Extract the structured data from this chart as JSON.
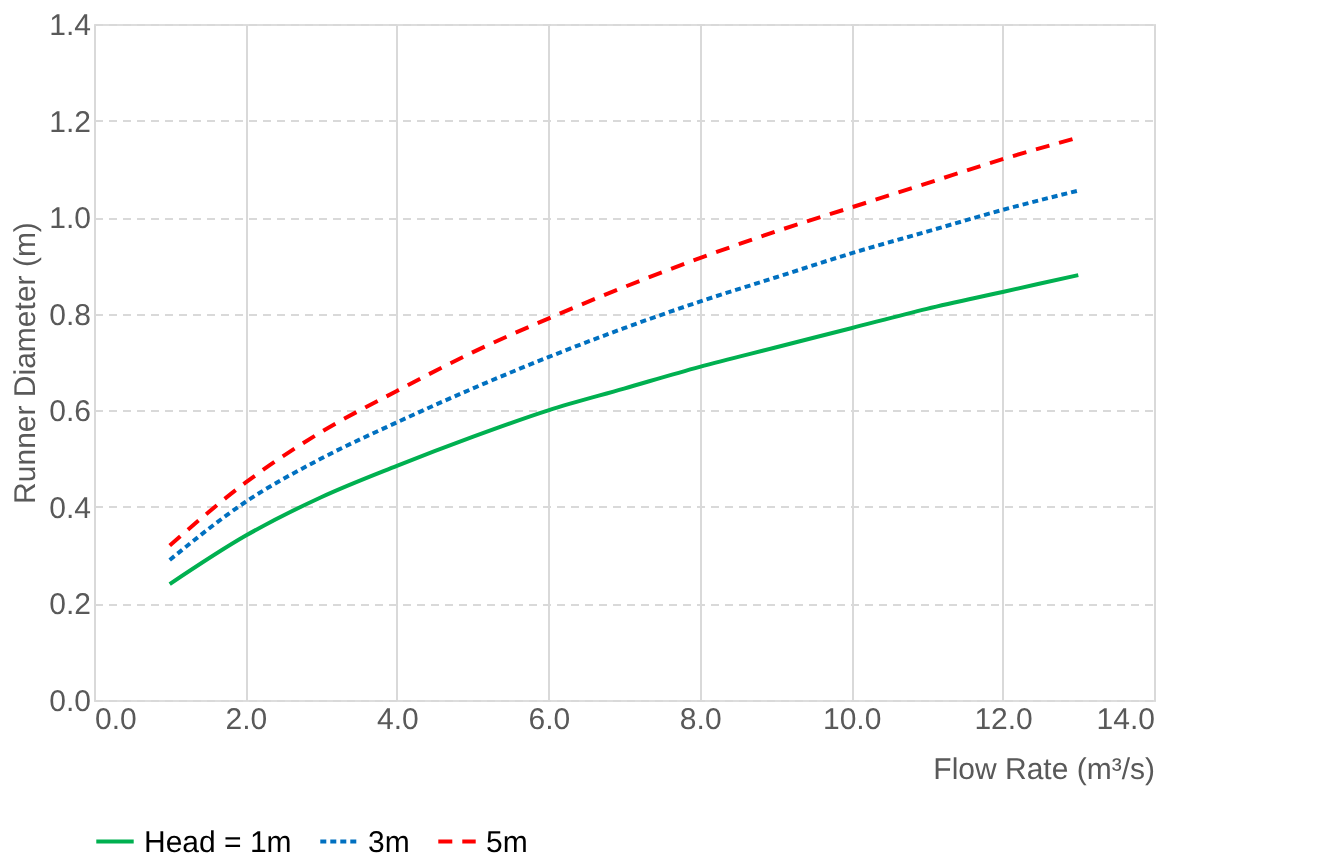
{
  "chart_data": {
    "type": "line",
    "xlabel": "Flow Rate (m³/s)",
    "ylabel": "Runner Diameter (m)",
    "x": [
      1,
      2,
      3,
      4,
      5,
      6,
      7,
      8,
      9,
      10,
      11,
      12,
      13
    ],
    "series": [
      {
        "name": "Head = 1m",
        "color": "#00b050",
        "line_style": "solid",
        "values": [
          0.24,
          0.34,
          0.42,
          0.485,
          0.545,
          0.6,
          0.645,
          0.69,
          0.73,
          0.77,
          0.81,
          0.845,
          0.88
        ]
      },
      {
        "name": "3m",
        "color": "#0070c0",
        "line_style": "dotted",
        "values": [
          0.29,
          0.41,
          0.5,
          0.575,
          0.645,
          0.71,
          0.77,
          0.825,
          0.875,
          0.925,
          0.97,
          1.015,
          1.055
        ]
      },
      {
        "name": "5m",
        "color": "#ff0000",
        "line_style": "dashed",
        "values": [
          0.32,
          0.45,
          0.555,
          0.64,
          0.72,
          0.79,
          0.855,
          0.915,
          0.97,
          1.02,
          1.07,
          1.12,
          1.165
        ]
      }
    ],
    "xlim": [
      0,
      14
    ],
    "ylim": [
      0,
      1.4
    ],
    "xticks": [
      {
        "value": 0,
        "label": "0.0"
      },
      {
        "value": 2,
        "label": "2.0"
      },
      {
        "value": 4,
        "label": "4.0"
      },
      {
        "value": 6,
        "label": "6.0"
      },
      {
        "value": 8,
        "label": "8.0"
      },
      {
        "value": 10,
        "label": "10.0"
      },
      {
        "value": 12,
        "label": "12.0"
      },
      {
        "value": 14,
        "label": "14.0"
      }
    ],
    "yticks": [
      {
        "value": 0,
        "label": "0.0"
      },
      {
        "value": 0.2,
        "label": "0.2"
      },
      {
        "value": 0.4,
        "label": "0.4"
      },
      {
        "value": 0.6,
        "label": "0.6"
      },
      {
        "value": 0.8,
        "label": "0.8"
      },
      {
        "value": 1,
        "label": "1.0"
      },
      {
        "value": 1.2,
        "label": "1.2"
      },
      {
        "value": 1.4,
        "label": "1.4"
      }
    ],
    "grid": true,
    "legend": "bottom",
    "marker": "none"
  }
}
